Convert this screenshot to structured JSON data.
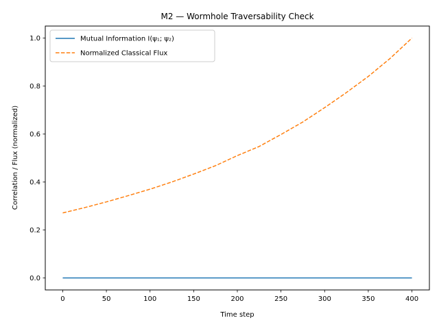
{
  "chart_data": {
    "type": "line",
    "title": "M2 — Wormhole Traversability Check",
    "xlabel": "Time step",
    "ylabel": "Correlation / Flux (normalized)",
    "xlim": [
      -20,
      420
    ],
    "ylim": [
      -0.05,
      1.05
    ],
    "xticks": [
      0,
      50,
      100,
      150,
      200,
      250,
      300,
      350,
      400
    ],
    "yticks": [
      0.0,
      0.2,
      0.4,
      0.6,
      0.8,
      1.0
    ],
    "xtick_labels": [
      "0",
      "50",
      "100",
      "150",
      "200",
      "250",
      "300",
      "350",
      "400"
    ],
    "ytick_labels": [
      "0.0",
      "0.2",
      "0.4",
      "0.6",
      "0.8",
      "1.0"
    ],
    "grid": false,
    "legend_position": "top-left",
    "series": [
      {
        "name": "Mutual Information I(ψ₁; ψ₂)",
        "color": "#1f77b4",
        "style": "solid",
        "x": [
          0,
          50,
          100,
          150,
          200,
          250,
          300,
          350,
          400
        ],
        "y": [
          0,
          0,
          0,
          0,
          0,
          0,
          0,
          0,
          0
        ]
      },
      {
        "name": "Normalized Classical Flux",
        "color": "#ff7f0e",
        "style": "dashed",
        "x": [
          0,
          25,
          50,
          75,
          100,
          125,
          150,
          175,
          200,
          225,
          250,
          275,
          300,
          325,
          350,
          375,
          400
        ],
        "y": [
          0.271,
          0.293,
          0.317,
          0.343,
          0.37,
          0.4,
          0.433,
          0.468,
          0.51,
          0.548,
          0.598,
          0.65,
          0.71,
          0.773,
          0.84,
          0.915,
          1.0
        ]
      }
    ]
  }
}
